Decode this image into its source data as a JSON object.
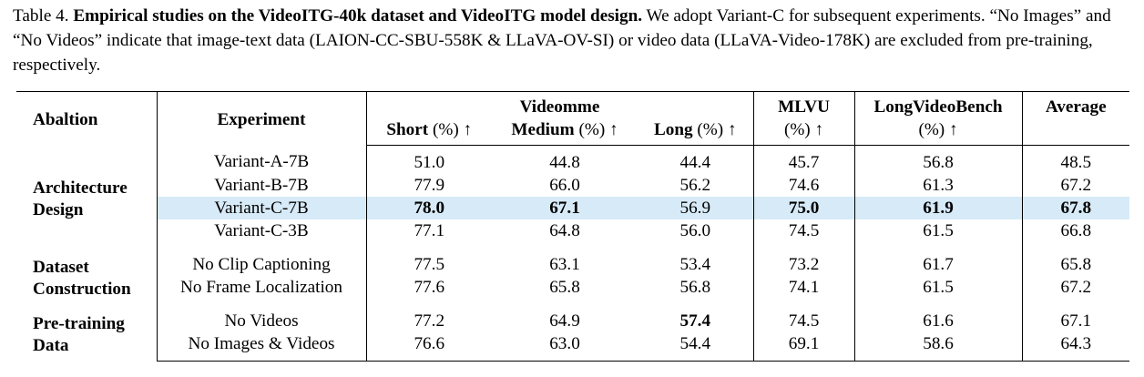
{
  "caption": {
    "label": "Table 4.",
    "title": "Empirical studies on the VideoITG-40k dataset and VideoITG model design.",
    "text": "We adopt Variant-C for subsequent experiments. “No Images” and “No Videos” indicate that image-text data (LAION-CC-SBU-558K & LLaVA-OV-SI) or video data (LLaVA-Video-178K) are excluded from pre-training, respectively."
  },
  "header": {
    "ablation": "Abaltion",
    "experiment": "Experiment",
    "videomme": "Videomme",
    "videomme_columns": [
      {
        "name": "Short",
        "unit": "(%) ↑"
      },
      {
        "name": "Medium",
        "unit": "(%) ↑"
      },
      {
        "name": "Long",
        "unit": "(%) ↑"
      }
    ],
    "mlvu": {
      "name": "MLVU",
      "unit": "(%) ↑"
    },
    "longvideobench": {
      "name": "LongVideoBench",
      "unit": "(%) ↑"
    },
    "average": "Average"
  },
  "groups": [
    {
      "label": [
        "Architecture",
        "Design"
      ],
      "rows": [
        [
          "Variant-A-7B",
          "51.0",
          "44.8",
          "44.4",
          "45.7",
          "56.8",
          "48.5"
        ],
        [
          "Variant-B-7B",
          "77.9",
          "66.0",
          "56.2",
          "74.6",
          "61.3",
          "67.2"
        ],
        [
          "Variant-C-7B",
          "78.0",
          "67.1",
          "56.9",
          "75.0",
          "61.9",
          "67.8"
        ],
        [
          "Variant-C-3B",
          "77.1",
          "64.8",
          "56.0",
          "74.5",
          "61.5",
          "66.8"
        ]
      ]
    },
    {
      "label": [
        "Dataset",
        "Construction"
      ],
      "rows": [
        [
          "No Clip Captioning",
          "77.5",
          "63.1",
          "53.4",
          "73.2",
          "61.7",
          "65.8"
        ],
        [
          "No Frame Localization",
          "77.6",
          "65.8",
          "56.8",
          "74.1",
          "61.5",
          "67.2"
        ]
      ]
    },
    {
      "label": [
        "Pre-training",
        "Data"
      ],
      "rows": [
        [
          "No Videos",
          "77.2",
          "64.9",
          "57.4",
          "74.5",
          "61.6",
          "67.1"
        ],
        [
          "No Images & Videos",
          "76.6",
          "63.0",
          "54.4",
          "69.1",
          "58.6",
          "64.3"
        ]
      ]
    }
  ]
}
